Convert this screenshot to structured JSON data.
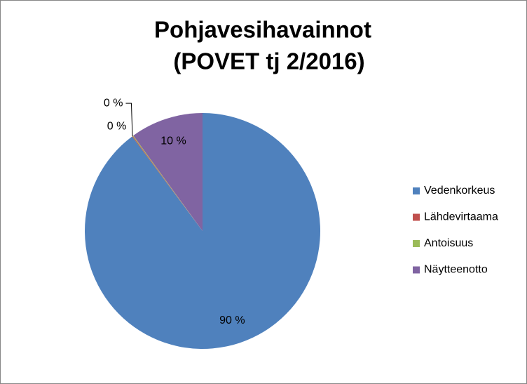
{
  "chart_data": {
    "type": "pie",
    "title": [
      "Pohjavesihavainnot",
      "(POVET tj 2/2016)"
    ],
    "categories": [
      "Vedenkorkeus",
      "Lähdevirtaama",
      "Antoisuus",
      "Näytteenotto"
    ],
    "values": [
      89.8,
      0.1,
      0.1,
      10
    ],
    "value_labels": [
      "90 %",
      "0 %",
      "0 %",
      "10 %"
    ],
    "colors": [
      "#4f81bd",
      "#c0504d",
      "#9bbb59",
      "#8064a2"
    ],
    "legend": "right"
  }
}
